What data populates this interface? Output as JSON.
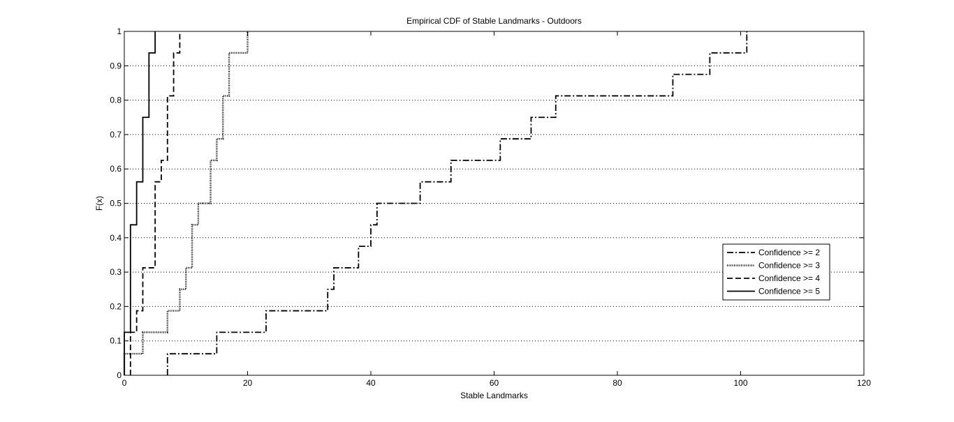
{
  "chart_data": {
    "type": "line",
    "subtype": "empirical-cdf-step",
    "title": "Empirical CDF of Stable Landmarks - Outdoors",
    "xlabel": "Stable Landmarks",
    "ylabel": "F(x)",
    "xlim": [
      0,
      120
    ],
    "ylim": [
      0,
      1
    ],
    "x_ticks": [
      0,
      20,
      40,
      60,
      80,
      100,
      120
    ],
    "y_ticks": [
      0,
      0.1,
      0.2,
      0.3,
      0.4,
      0.5,
      0.6,
      0.7,
      0.8,
      0.9,
      1
    ],
    "y_tick_labels": [
      "0",
      "0.1",
      "0.2",
      "0.3",
      "0.4",
      "0.5",
      "0.6",
      "0.7",
      "0.8",
      "0.9",
      "1"
    ],
    "grid": "horizontal dotted",
    "legend_position": "right",
    "series": [
      {
        "name": "Confidence >= 2",
        "line_style": "dash-dot",
        "x": [
          7,
          15,
          23,
          33,
          34,
          38,
          40,
          41,
          48,
          53,
          61,
          66,
          70,
          89,
          95,
          101
        ],
        "y": [
          0.0625,
          0.125,
          0.1875,
          0.25,
          0.3125,
          0.375,
          0.4375,
          0.5,
          0.5625,
          0.625,
          0.6875,
          0.75,
          0.8125,
          0.875,
          0.9375,
          1.0
        ]
      },
      {
        "name": "Confidence >= 3",
        "line_style": "dotted",
        "x": [
          0,
          3,
          7,
          9,
          10,
          11,
          12,
          14,
          15,
          16,
          17,
          20
        ],
        "y": [
          0.0625,
          0.125,
          0.1875,
          0.25,
          0.3125,
          0.4375,
          0.5,
          0.625,
          0.6875,
          0.8125,
          0.9375,
          1.0
        ]
      },
      {
        "name": "Confidence >= 4",
        "line_style": "dashed",
        "x": [
          1,
          2,
          3,
          5,
          6,
          7,
          8,
          9
        ],
        "y": [
          0.125,
          0.1875,
          0.3125,
          0.5625,
          0.625,
          0.8125,
          0.9375,
          1.0
        ]
      },
      {
        "name": "Confidence >= 5",
        "line_style": "solid",
        "x": [
          0,
          1,
          2,
          3,
          4,
          5
        ],
        "y": [
          0.125,
          0.4375,
          0.5625,
          0.75,
          0.9375,
          1.0
        ]
      }
    ]
  }
}
